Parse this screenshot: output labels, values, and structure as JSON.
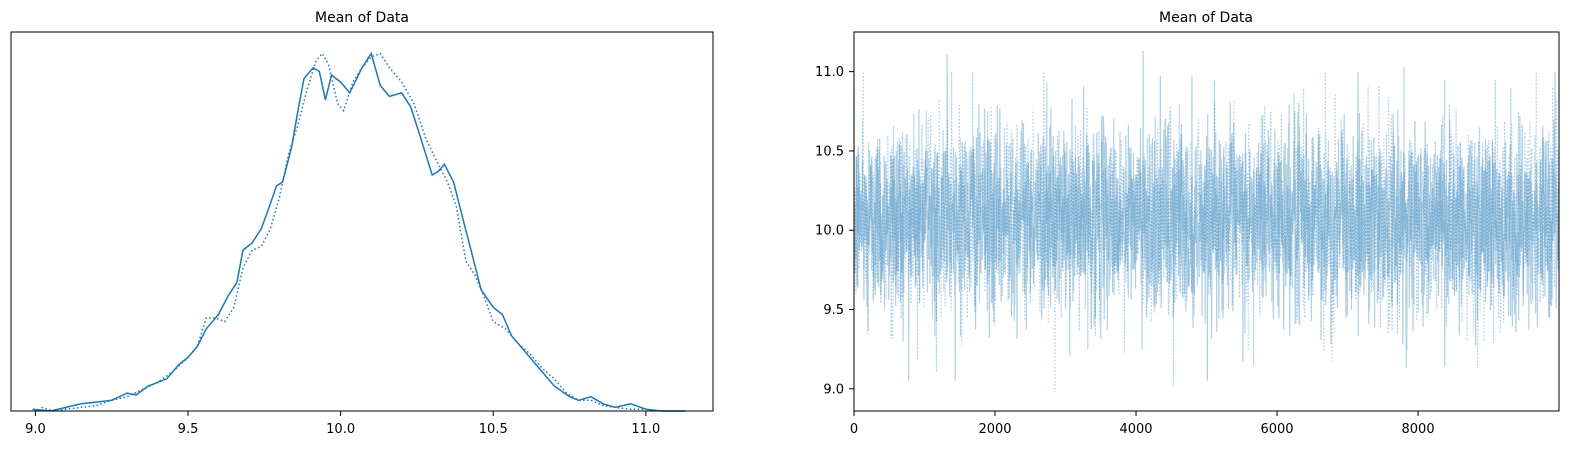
{
  "chart_data": [
    {
      "type": "line",
      "subtype": "kde",
      "title": "Mean of Data",
      "xlabel": "",
      "ylabel": "",
      "xlim": [
        8.92,
        11.22
      ],
      "ylim": [
        0,
        1.06
      ],
      "x_ticks": [
        "9.0",
        "9.5",
        "10.0",
        "10.5",
        "11.0"
      ],
      "x_tick_values": [
        9.0,
        9.5,
        10.0,
        10.5,
        11.0
      ],
      "y_ticks_shown": false,
      "grid": false,
      "color": "#1f77b4",
      "series": [
        {
          "style": "solid",
          "x": [
            8.99,
            9.05,
            9.1,
            9.15,
            9.2,
            9.25,
            9.3,
            9.33,
            9.37,
            9.4,
            9.43,
            9.47,
            9.5,
            9.53,
            9.56,
            9.6,
            9.63,
            9.66,
            9.68,
            9.71,
            9.74,
            9.77,
            9.79,
            9.81,
            9.84,
            9.86,
            9.88,
            9.91,
            9.93,
            9.95,
            9.97,
            10.0,
            10.03,
            10.07,
            10.1,
            10.13,
            10.16,
            10.2,
            10.23,
            10.26,
            10.3,
            10.32,
            10.34,
            10.37,
            10.4,
            10.43,
            10.46,
            10.5,
            10.53,
            10.56,
            10.6,
            10.65,
            10.7,
            10.75,
            10.78,
            10.82,
            10.86,
            10.9,
            10.95,
            11.0,
            11.05,
            11.13
          ],
          "y": [
            0.005,
            0.0,
            0.01,
            0.02,
            0.025,
            0.03,
            0.05,
            0.045,
            0.07,
            0.08,
            0.09,
            0.13,
            0.15,
            0.18,
            0.23,
            0.27,
            0.32,
            0.36,
            0.45,
            0.47,
            0.51,
            0.58,
            0.63,
            0.64,
            0.74,
            0.84,
            0.93,
            0.96,
            0.95,
            0.87,
            0.94,
            0.92,
            0.89,
            0.96,
            1.0,
            0.91,
            0.88,
            0.89,
            0.85,
            0.77,
            0.66,
            0.67,
            0.69,
            0.64,
            0.54,
            0.44,
            0.34,
            0.29,
            0.27,
            0.21,
            0.17,
            0.12,
            0.07,
            0.04,
            0.03,
            0.04,
            0.02,
            0.01,
            0.02,
            0.005,
            0.0,
            0.0
          ]
        },
        {
          "style": "dotted",
          "x": [
            9.02,
            9.06,
            9.1,
            9.15,
            9.2,
            9.25,
            9.3,
            9.35,
            9.4,
            9.45,
            9.5,
            9.53,
            9.56,
            9.59,
            9.62,
            9.65,
            9.68,
            9.71,
            9.74,
            9.77,
            9.8,
            9.83,
            9.86,
            9.89,
            9.92,
            9.94,
            9.96,
            9.99,
            10.01,
            10.04,
            10.07,
            10.1,
            10.13,
            10.16,
            10.2,
            10.24,
            10.28,
            10.32,
            10.35,
            10.38,
            10.41,
            10.44,
            10.47,
            10.5,
            10.54,
            10.58,
            10.62,
            10.66,
            10.7,
            10.74,
            10.78,
            10.82,
            10.86,
            10.9,
            10.95,
            11.0,
            11.05,
            11.13
          ],
          "y": [
            0.01,
            0.0,
            0.005,
            0.01,
            0.015,
            0.03,
            0.04,
            0.06,
            0.08,
            0.11,
            0.15,
            0.18,
            0.26,
            0.26,
            0.25,
            0.29,
            0.4,
            0.45,
            0.46,
            0.51,
            0.6,
            0.72,
            0.8,
            0.9,
            0.98,
            1.0,
            0.97,
            0.86,
            0.84,
            0.92,
            0.96,
            0.99,
            1.0,
            0.96,
            0.92,
            0.86,
            0.76,
            0.69,
            0.64,
            0.57,
            0.42,
            0.38,
            0.32,
            0.25,
            0.23,
            0.19,
            0.16,
            0.12,
            0.09,
            0.05,
            0.03,
            0.03,
            0.015,
            0.01,
            0.005,
            0.005,
            0.0,
            0.0
          ]
        }
      ]
    },
    {
      "type": "line",
      "subtype": "trace",
      "title": "Mean of Data",
      "xlabel": "",
      "ylabel": "",
      "xlim": [
        0,
        9999
      ],
      "ylim": [
        8.86,
        11.25
      ],
      "x_ticks": [
        "0",
        "2000",
        "4000",
        "6000",
        "8000"
      ],
      "x_tick_values": [
        0,
        2000,
        4000,
        6000,
        8000
      ],
      "y_ticks": [
        "9.0",
        "9.5",
        "10.0",
        "10.5",
        "11.0"
      ],
      "y_tick_values": [
        9.0,
        9.5,
        10.0,
        10.5,
        11.0
      ],
      "grid": false,
      "color": "#1f77b4",
      "alpha": 0.35,
      "n_samples": 10000,
      "center": 10.07,
      "spread_sd": 0.3,
      "notable_values": [
        {
          "x": 1320,
          "y": 11.11
        },
        {
          "x": 2850,
          "y": 8.98
        },
        {
          "x": 4100,
          "y": 11.13
        },
        {
          "x": 4530,
          "y": 9.02
        },
        {
          "x": 8380,
          "y": 9.14
        },
        {
          "x": 7800,
          "y": 11.03
        }
      ],
      "series": [
        {
          "style": "solid"
        },
        {
          "style": "dotted"
        }
      ]
    }
  ]
}
